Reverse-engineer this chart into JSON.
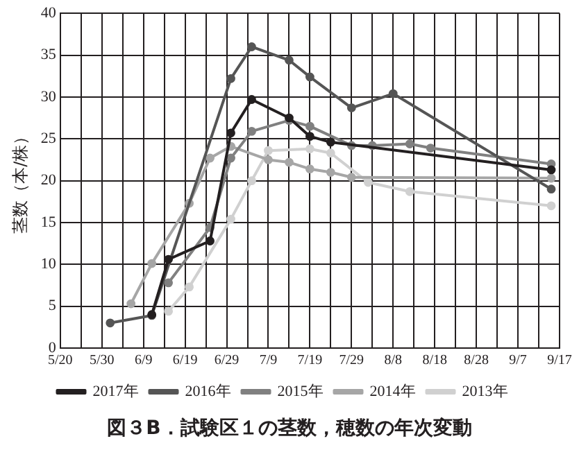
{
  "chart_data": {
    "type": "line",
    "title": "図３B．試験区１の茎数，穂数の年次変動",
    "ylabel": "茎数（本/株）",
    "xlim": [
      "--05-20",
      "--09-17"
    ],
    "xticks": [
      {
        "value": "--05-20",
        "label": "5/20"
      },
      {
        "value": "--05-25",
        "label": null
      },
      {
        "value": "--05-30",
        "label": "5/30"
      },
      {
        "value": "--06-04",
        "label": null
      },
      {
        "value": "--06-09",
        "label": "6/9"
      },
      {
        "value": "--06-14",
        "label": null
      },
      {
        "value": "--06-19",
        "label": "6/19"
      },
      {
        "value": "--06-24",
        "label": null
      },
      {
        "value": "--06-29",
        "label": "6/29"
      },
      {
        "value": "--07-04",
        "label": null
      },
      {
        "value": "--07-09",
        "label": "7/9"
      },
      {
        "value": "--07-14",
        "label": null
      },
      {
        "value": "--07-19",
        "label": "7/19"
      },
      {
        "value": "--07-24",
        "label": null
      },
      {
        "value": "--07-29",
        "label": "7/29"
      },
      {
        "value": "--08-03",
        "label": null
      },
      {
        "value": "--08-08",
        "label": "8/8"
      },
      {
        "value": "--08-13",
        "label": null
      },
      {
        "value": "--08-18",
        "label": "8/18"
      },
      {
        "value": "--08-23",
        "label": null
      },
      {
        "value": "--08-28",
        "label": "8/28"
      },
      {
        "value": "--09-02",
        "label": null
      },
      {
        "value": "--09-07",
        "label": "9/7"
      },
      {
        "value": "--09-12",
        "label": null
      },
      {
        "value": "--09-17",
        "label": "9/17"
      }
    ],
    "ylim": [
      0,
      40
    ],
    "yticks": [
      0,
      5,
      10,
      15,
      20,
      25,
      30,
      35,
      40
    ],
    "grid": true,
    "legend": "bottom",
    "marker": "circle",
    "line_style": "solid",
    "series": [
      {
        "name": "2017年",
        "color": "#231f20",
        "x": [
          "--06-11",
          "--06-15",
          "--06-25",
          "--06-30",
          "--07-05",
          "--07-14",
          "--07-19",
          "--07-24",
          "--09-15"
        ],
        "values": [
          4.0,
          10.6,
          12.8,
          25.7,
          29.7,
          27.5,
          25.3,
          24.6,
          21.3
        ]
      },
      {
        "name": "2016年",
        "color": "#555555",
        "x": [
          "--06-01",
          "--06-11",
          "--06-30",
          "--07-05",
          "--07-14",
          "--07-19",
          "--07-29",
          "--08-08",
          "--09-15"
        ],
        "values": [
          3.0,
          3.9,
          32.2,
          36.0,
          34.4,
          32.4,
          28.7,
          30.4,
          19.0
        ]
      },
      {
        "name": "2015年",
        "color": "#808080",
        "x": [
          "--06-15",
          "--06-25",
          "--06-30",
          "--07-05",
          "--07-14",
          "--07-19",
          "--07-29",
          "--08-03",
          "--08-12",
          "--08-17",
          "--09-15"
        ],
        "values": [
          7.8,
          14.4,
          22.7,
          25.9,
          27.2,
          26.5,
          24.2,
          24.2,
          24.4,
          23.9,
          22.0
        ]
      },
      {
        "name": "2014年",
        "color": "#a6a6a6",
        "x": [
          "--06-06",
          "--06-11",
          "--06-20",
          "--06-25",
          "--06-30",
          "--07-09",
          "--07-14",
          "--07-19",
          "--07-24",
          "--07-29",
          "--09-15"
        ],
        "values": [
          5.3,
          10.1,
          17.3,
          22.7,
          24.1,
          22.5,
          22.2,
          21.4,
          21.0,
          20.4,
          20.3
        ]
      },
      {
        "name": "2013年",
        "color": "#d0d0d0",
        "x": [
          "--06-15",
          "--06-20",
          "--06-30",
          "--07-05",
          "--07-09",
          "--07-19",
          "--07-24",
          "--08-02",
          "--08-12",
          "--09-15"
        ],
        "values": [
          4.4,
          7.3,
          15.4,
          20.0,
          23.6,
          23.8,
          23.3,
          19.8,
          18.7,
          17.0
        ]
      }
    ]
  }
}
